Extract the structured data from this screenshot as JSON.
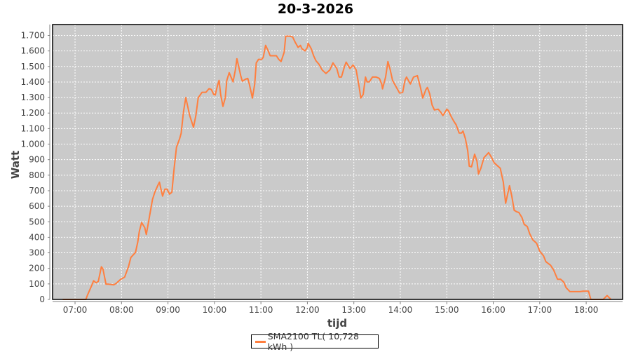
{
  "chart_data": {
    "type": "line",
    "title": "20-3-2026",
    "xlabel": "tijd",
    "ylabel": "Watt",
    "xlim": [
      "06:31",
      "18:47"
    ],
    "ylim": [
      0,
      1770
    ],
    "grid": true,
    "legend_position": "bottom",
    "background_color": "#cacaca",
    "x_tick_labels": [
      "07:00",
      "08:00",
      "09:00",
      "10:00",
      "11:00",
      "12:00",
      "13:00",
      "14:00",
      "15:00",
      "16:00",
      "17:00",
      "18:00"
    ],
    "y_ticks": [
      0,
      100,
      200,
      300,
      400,
      500,
      600,
      700,
      800,
      900,
      1000,
      1100,
      1200,
      1300,
      1400,
      1500,
      1600,
      1700
    ],
    "y_tick_labels": [
      "0",
      "100",
      "200",
      "300",
      "400",
      "500",
      "600",
      "700",
      "800",
      "900",
      "1.000",
      "1.100",
      "1.200",
      "1.300",
      "1.400",
      "1.500",
      "1.600",
      "1.700"
    ],
    "series": [
      {
        "name": "SMA2100 TL( 10,728 kWh )",
        "color": "#ff7f3f",
        "points": [
          [
            "06:44",
            0
          ],
          [
            "07:10",
            0
          ],
          [
            "07:14",
            0
          ],
          [
            "07:16",
            27
          ],
          [
            "07:22",
            95
          ],
          [
            "07:24",
            120
          ],
          [
            "07:27",
            107
          ],
          [
            "07:30",
            116
          ],
          [
            "07:34",
            210
          ],
          [
            "07:36",
            197
          ],
          [
            "07:40",
            98
          ],
          [
            "07:43",
            98
          ],
          [
            "07:50",
            94
          ],
          [
            "07:53",
            103
          ],
          [
            "07:59",
            130
          ],
          [
            "08:04",
            143
          ],
          [
            "08:09",
            211
          ],
          [
            "08:12",
            270
          ],
          [
            "08:18",
            302
          ],
          [
            "08:21",
            370
          ],
          [
            "08:23",
            438
          ],
          [
            "08:26",
            495
          ],
          [
            "08:30",
            463
          ],
          [
            "08:32",
            418
          ],
          [
            "08:36",
            531
          ],
          [
            "08:40",
            644
          ],
          [
            "08:43",
            690
          ],
          [
            "08:47",
            735
          ],
          [
            "08:49",
            755
          ],
          [
            "08:51",
            710
          ],
          [
            "08:53",
            665
          ],
          [
            "08:56",
            710
          ],
          [
            "08:59",
            710
          ],
          [
            "09:02",
            678
          ],
          [
            "09:05",
            690
          ],
          [
            "09:08",
            845
          ],
          [
            "09:11",
            980
          ],
          [
            "09:15",
            1035
          ],
          [
            "09:17",
            1070
          ],
          [
            "09:20",
            1208
          ],
          [
            "09:23",
            1300
          ],
          [
            "09:28",
            1185
          ],
          [
            "09:33",
            1108
          ],
          [
            "09:36",
            1185
          ],
          [
            "09:39",
            1298
          ],
          [
            "09:44",
            1334
          ],
          [
            "09:49",
            1334
          ],
          [
            "09:53",
            1357
          ],
          [
            "09:56",
            1352
          ],
          [
            "09:59",
            1320
          ],
          [
            "10:01",
            1316
          ],
          [
            "10:04",
            1379
          ],
          [
            "10:06",
            1410
          ],
          [
            "10:08",
            1320
          ],
          [
            "10:11",
            1243
          ],
          [
            "10:14",
            1298
          ],
          [
            "10:16",
            1410
          ],
          [
            "10:19",
            1460
          ],
          [
            "10:24",
            1401
          ],
          [
            "10:27",
            1478
          ],
          [
            "10:29",
            1550
          ],
          [
            "10:34",
            1440
          ],
          [
            "10:36",
            1405
          ],
          [
            "10:40",
            1418
          ],
          [
            "10:43",
            1423
          ],
          [
            "10:45",
            1387
          ],
          [
            "10:49",
            1297
          ],
          [
            "10:52",
            1387
          ],
          [
            "10:54",
            1523
          ],
          [
            "10:57",
            1546
          ],
          [
            "11:01",
            1546
          ],
          [
            "11:03",
            1559
          ],
          [
            "11:06",
            1636
          ],
          [
            "11:09",
            1605
          ],
          [
            "11:12",
            1569
          ],
          [
            "11:14",
            1569
          ],
          [
            "11:20",
            1569
          ],
          [
            "11:23",
            1546
          ],
          [
            "11:26",
            1532
          ],
          [
            "11:30",
            1591
          ],
          [
            "11:32",
            1695
          ],
          [
            "11:37",
            1695
          ],
          [
            "11:41",
            1690
          ],
          [
            "11:44",
            1659
          ],
          [
            "11:48",
            1623
          ],
          [
            "11:51",
            1636
          ],
          [
            "11:53",
            1614
          ],
          [
            "11:57",
            1600
          ],
          [
            "12:00",
            1623
          ],
          [
            "12:01",
            1650
          ],
          [
            "12:05",
            1614
          ],
          [
            "12:08",
            1569
          ],
          [
            "12:11",
            1537
          ],
          [
            "12:15",
            1514
          ],
          [
            "12:19",
            1478
          ],
          [
            "12:24",
            1455
          ],
          [
            "12:29",
            1478
          ],
          [
            "12:33",
            1523
          ],
          [
            "12:38",
            1487
          ],
          [
            "12:41",
            1432
          ],
          [
            "12:44",
            1432
          ],
          [
            "12:48",
            1500
          ],
          [
            "12:50",
            1528
          ],
          [
            "12:55",
            1487
          ],
          [
            "12:59",
            1510
          ],
          [
            "13:03",
            1478
          ],
          [
            "13:07",
            1365
          ],
          [
            "13:09",
            1297
          ],
          [
            "13:12",
            1320
          ],
          [
            "13:15",
            1432
          ],
          [
            "13:17",
            1401
          ],
          [
            "13:20",
            1401
          ],
          [
            "13:24",
            1432
          ],
          [
            "13:29",
            1432
          ],
          [
            "13:33",
            1423
          ],
          [
            "13:36",
            1387
          ],
          [
            "13:37",
            1356
          ],
          [
            "13:41",
            1432
          ],
          [
            "13:44",
            1532
          ],
          [
            "13:47",
            1478
          ],
          [
            "13:50",
            1410
          ],
          [
            "13:55",
            1365
          ],
          [
            "13:59",
            1329
          ],
          [
            "14:03",
            1333
          ],
          [
            "14:06",
            1410
          ],
          [
            "14:08",
            1432
          ],
          [
            "14:13",
            1387
          ],
          [
            "14:17",
            1432
          ],
          [
            "14:22",
            1441
          ],
          [
            "14:26",
            1365
          ],
          [
            "14:29",
            1297
          ],
          [
            "14:33",
            1351
          ],
          [
            "14:35",
            1365
          ],
          [
            "14:38",
            1324
          ],
          [
            "14:41",
            1252
          ],
          [
            "14:44",
            1220
          ],
          [
            "14:49",
            1225
          ],
          [
            "14:52",
            1207
          ],
          [
            "14:55",
            1184
          ],
          [
            "14:58",
            1207
          ],
          [
            "15:00",
            1225
          ],
          [
            "15:02",
            1216
          ],
          [
            "15:05",
            1184
          ],
          [
            "15:09",
            1148
          ],
          [
            "15:12",
            1125
          ],
          [
            "15:16",
            1071
          ],
          [
            "15:19",
            1071
          ],
          [
            "15:21",
            1084
          ],
          [
            "15:24",
            1035
          ],
          [
            "15:27",
            958
          ],
          [
            "15:29",
            858
          ],
          [
            "15:32",
            854
          ],
          [
            "15:36",
            935
          ],
          [
            "15:39",
            890
          ],
          [
            "15:41",
            808
          ],
          [
            "15:44",
            845
          ],
          [
            "15:48",
            913
          ],
          [
            "15:54",
            945
          ],
          [
            "15:58",
            913
          ],
          [
            "16:01",
            881
          ],
          [
            "16:06",
            858
          ],
          [
            "16:09",
            845
          ],
          [
            "16:13",
            755
          ],
          [
            "16:16",
            619
          ],
          [
            "16:18",
            664
          ],
          [
            "16:21",
            732
          ],
          [
            "16:24",
            664
          ],
          [
            "16:27",
            574
          ],
          [
            "16:30",
            565
          ],
          [
            "16:33",
            560
          ],
          [
            "16:37",
            528
          ],
          [
            "16:40",
            483
          ],
          [
            "16:44",
            469
          ],
          [
            "16:47",
            424
          ],
          [
            "16:51",
            384
          ],
          [
            "16:56",
            361
          ],
          [
            "17:00",
            311
          ],
          [
            "17:05",
            280
          ],
          [
            "17:08",
            243
          ],
          [
            "17:14",
            220
          ],
          [
            "17:18",
            189
          ],
          [
            "17:23",
            130
          ],
          [
            "17:27",
            130
          ],
          [
            "17:31",
            112
          ],
          [
            "17:34",
            76
          ],
          [
            "17:39",
            50
          ],
          [
            "17:52",
            50
          ],
          [
            "17:56",
            53
          ],
          [
            "18:03",
            53
          ],
          [
            "18:06",
            0
          ],
          [
            "18:22",
            0
          ],
          [
            "18:27",
            25
          ],
          [
            "18:32",
            0
          ]
        ]
      }
    ]
  }
}
